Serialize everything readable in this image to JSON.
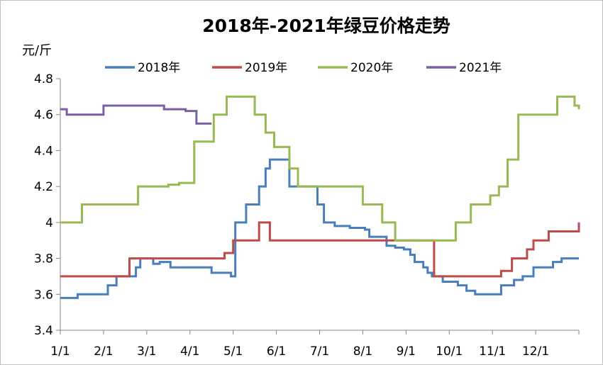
{
  "chart_data": {
    "type": "line",
    "title": "2018年-2021年绿豆价格走势",
    "ylabel": "元/斤",
    "xlabel": "",
    "ylim": [
      3.4,
      4.8
    ],
    "yticks": [
      "3.4",
      "3.6",
      "3.8",
      "4",
      "4.2",
      "4.4",
      "4.6",
      "4.8"
    ],
    "xlim": [
      1,
      13
    ],
    "xticks": [
      "1/1",
      "2/1",
      "3/1",
      "4/1",
      "5/1",
      "6/1",
      "7/1",
      "8/1",
      "9/1",
      "10/1",
      "11/1",
      "12/1"
    ],
    "grid": false,
    "legend": "top",
    "step": true,
    "series": [
      {
        "name": "2018年",
        "color": "#4a7ebb",
        "x": [
          1,
          1.4,
          1.95,
          2.1,
          2.3,
          2.75,
          2.85,
          3.15,
          3.3,
          3.55,
          3.75,
          4.5,
          4.95,
          5.05,
          5.3,
          5.6,
          5.75,
          5.85,
          6.0,
          6.3,
          6.95,
          7.1,
          7.35,
          7.7,
          8.05,
          8.15,
          8.55,
          8.75,
          8.95,
          9.1,
          9.2,
          9.4,
          9.5,
          9.6,
          9.85,
          10.0,
          10.2,
          10.4,
          10.6,
          11.2,
          11.5,
          11.7,
          11.95,
          12.2,
          12.4,
          12.6,
          13.0
        ],
        "values": [
          3.58,
          3.6,
          3.6,
          3.65,
          3.7,
          3.75,
          3.8,
          3.77,
          3.78,
          3.75,
          3.75,
          3.72,
          3.7,
          4.0,
          4.1,
          4.2,
          4.3,
          4.35,
          4.35,
          4.2,
          4.1,
          4.0,
          3.98,
          3.97,
          3.96,
          3.92,
          3.87,
          3.86,
          3.85,
          3.82,
          3.78,
          3.75,
          3.72,
          3.7,
          3.67,
          3.67,
          3.65,
          3.62,
          3.6,
          3.65,
          3.68,
          3.7,
          3.75,
          3.75,
          3.78,
          3.8,
          3.8
        ]
      },
      {
        "name": "2019年",
        "color": "#be4b48",
        "x": [
          1,
          2.3,
          2.6,
          4.55,
          4.8,
          5.0,
          5.6,
          5.85,
          7.0,
          8.5,
          9.6,
          9.65,
          10.0,
          10.8,
          11.2,
          11.45,
          11.8,
          11.95,
          12.3,
          13.0
        ],
        "values": [
          3.7,
          3.7,
          3.8,
          3.8,
          3.83,
          3.9,
          4.0,
          3.9,
          3.9,
          3.9,
          3.9,
          3.7,
          3.7,
          3.7,
          3.73,
          3.8,
          3.85,
          3.9,
          3.95,
          4.0
        ]
      },
      {
        "name": "2020年",
        "color": "#98b954",
        "x": [
          1,
          1.5,
          2.0,
          2.8,
          3.3,
          3.5,
          3.75,
          4.1,
          4.55,
          4.85,
          5.3,
          5.5,
          5.75,
          5.95,
          6.3,
          6.5,
          7.0,
          8.0,
          8.45,
          8.75,
          9.0,
          10.15,
          10.5,
          10.95,
          11.15,
          11.35,
          11.6,
          12.0,
          12.5,
          12.9,
          13.0
        ],
        "values": [
          4.0,
          4.1,
          4.1,
          4.2,
          4.2,
          4.21,
          4.22,
          4.45,
          4.6,
          4.7,
          4.7,
          4.6,
          4.5,
          4.42,
          4.3,
          4.2,
          4.2,
          4.1,
          4.0,
          3.9,
          3.9,
          4.0,
          4.1,
          4.15,
          4.2,
          4.35,
          4.6,
          4.6,
          4.7,
          4.65,
          4.63
        ]
      },
      {
        "name": "2021年",
        "color": "#7d5fa0",
        "x": [
          1,
          1.15,
          2.0,
          3.0,
          3.4,
          3.9,
          4.15,
          4.5
        ],
        "values": [
          4.63,
          4.6,
          4.65,
          4.65,
          4.63,
          4.62,
          4.55,
          4.55
        ]
      }
    ]
  }
}
